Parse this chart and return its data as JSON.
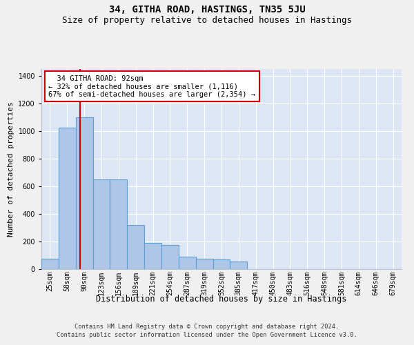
{
  "title": "34, GITHA ROAD, HASTINGS, TN35 5JU",
  "subtitle": "Size of property relative to detached houses in Hastings",
  "xlabel": "Distribution of detached houses by size in Hastings",
  "ylabel": "Number of detached properties",
  "footnote1": "Contains HM Land Registry data © Crown copyright and database right 2024.",
  "footnote2": "Contains public sector information licensed under the Open Government Licence v3.0.",
  "bin_labels": [
    "25sqm",
    "58sqm",
    "90sqm",
    "123sqm",
    "156sqm",
    "189sqm",
    "221sqm",
    "254sqm",
    "287sqm",
    "319sqm",
    "352sqm",
    "385sqm",
    "417sqm",
    "450sqm",
    "483sqm",
    "516sqm",
    "548sqm",
    "581sqm",
    "614sqm",
    "646sqm",
    "679sqm"
  ],
  "bar_values": [
    75,
    1025,
    1100,
    650,
    650,
    320,
    190,
    175,
    90,
    75,
    70,
    55,
    0,
    0,
    0,
    0,
    0,
    0,
    0,
    0,
    0
  ],
  "bar_color": "#aec6e8",
  "bar_edge_color": "#5a9fd4",
  "bar_edge_width": 0.8,
  "bg_color": "#dce6f5",
  "grid_color": "#ffffff",
  "annotation_box_text": "  34 GITHA ROAD: 92sqm\n← 32% of detached houses are smaller (1,116)\n67% of semi-detached houses are larger (2,354) →",
  "annotation_box_color": "#cc0000",
  "property_line_x": 1.75,
  "property_line_color": "#cc0000",
  "ylim": [
    0,
    1450
  ],
  "yticks": [
    0,
    200,
    400,
    600,
    800,
    1000,
    1200,
    1400
  ],
  "title_fontsize": 10,
  "subtitle_fontsize": 9,
  "xlabel_fontsize": 8.5,
  "ylabel_fontsize": 8,
  "tick_fontsize": 7,
  "annotation_fontsize": 7.5,
  "fig_bg_color": "#f0f0f0"
}
